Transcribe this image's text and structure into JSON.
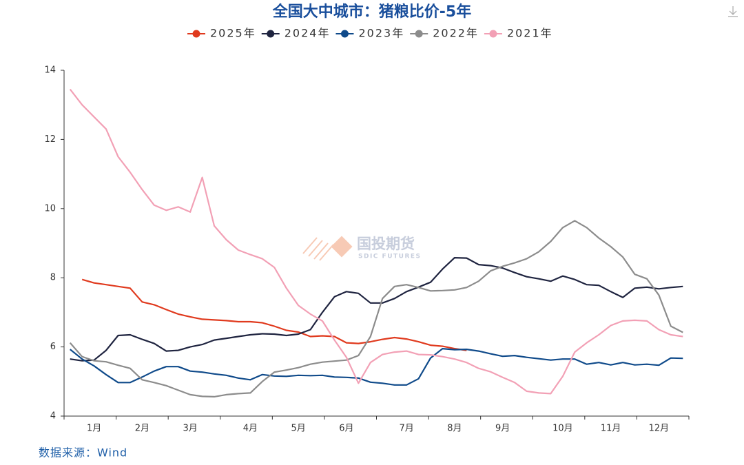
{
  "chart_data": {
    "type": "line",
    "title": "全国大中城市：猪粮比价-5年",
    "source": "数据来源：Wind",
    "watermark": {
      "text": "国投期货",
      "subtext": "SDIC FUTURES"
    },
    "categories": [
      null,
      null,
      "1月",
      null,
      null,
      null,
      "2月",
      null,
      null,
      null,
      "3月",
      null,
      null,
      null,
      null,
      "4月",
      null,
      null,
      null,
      "5月",
      null,
      null,
      null,
      "6月",
      null,
      null,
      null,
      null,
      "7月",
      null,
      null,
      null,
      "8月",
      null,
      null,
      null,
      "9月",
      null,
      null,
      null,
      null,
      "10月",
      null,
      null,
      null,
      "11月",
      null,
      null,
      null,
      "12月",
      null,
      null
    ],
    "series": [
      {
        "name": "2025年",
        "color": "#e03a1e",
        "values": [
          null,
          7.95,
          7.85,
          7.8,
          7.75,
          7.7,
          7.3,
          7.22,
          7.08,
          6.95,
          6.87,
          6.8,
          6.78,
          6.76,
          6.73,
          6.73,
          6.7,
          6.6,
          6.48,
          6.43,
          6.3,
          6.32,
          6.3,
          6.12,
          6.1,
          6.15,
          6.22,
          6.27,
          6.23,
          6.15,
          6.05,
          6.02,
          5.95,
          5.9,
          null,
          null,
          null,
          null,
          null,
          null,
          null,
          null,
          null,
          null,
          null,
          null,
          null,
          null,
          null,
          null,
          null,
          null
        ]
      },
      {
        "name": "2024年",
        "color": "#1f2440",
        "values": [
          5.65,
          5.6,
          5.62,
          5.9,
          6.33,
          6.35,
          6.22,
          6.1,
          5.88,
          5.9,
          6.0,
          6.07,
          6.2,
          6.25,
          6.3,
          6.35,
          6.38,
          6.37,
          6.33,
          6.37,
          6.5,
          7.0,
          7.45,
          7.6,
          7.55,
          7.27,
          7.27,
          7.4,
          7.6,
          7.73,
          7.87,
          8.25,
          8.58,
          8.57,
          8.38,
          8.35,
          8.28,
          8.15,
          8.03,
          7.97,
          7.9,
          8.05,
          7.95,
          7.8,
          7.78,
          7.6,
          7.43,
          7.7,
          7.73,
          7.68,
          7.72,
          7.75
        ]
      },
      {
        "name": "2023年",
        "color": "#0f4a8a",
        "values": [
          5.93,
          5.65,
          5.45,
          5.2,
          4.97,
          4.97,
          5.13,
          5.3,
          5.43,
          5.43,
          5.3,
          5.27,
          5.22,
          5.18,
          5.1,
          5.05,
          5.2,
          5.16,
          5.15,
          5.18,
          5.17,
          5.18,
          5.13,
          5.12,
          5.1,
          4.98,
          4.95,
          4.9,
          4.9,
          5.08,
          5.68,
          5.95,
          5.92,
          5.93,
          5.88,
          5.8,
          5.73,
          5.75,
          5.7,
          5.66,
          5.62,
          5.65,
          5.65,
          5.5,
          5.55,
          5.48,
          5.55,
          5.48,
          5.5,
          5.47,
          5.68,
          5.67
        ]
      },
      {
        "name": "2022年",
        "color": "#8c8c8c",
        "values": [
          6.12,
          5.72,
          5.6,
          5.57,
          5.47,
          5.38,
          5.05,
          4.97,
          4.88,
          4.75,
          4.62,
          4.57,
          4.56,
          4.62,
          4.65,
          4.67,
          5.0,
          5.27,
          5.33,
          5.4,
          5.5,
          5.56,
          5.59,
          5.62,
          5.75,
          6.3,
          7.4,
          7.75,
          7.8,
          7.72,
          7.62,
          7.63,
          7.65,
          7.72,
          7.9,
          8.2,
          8.33,
          8.43,
          8.55,
          8.75,
          9.05,
          9.45,
          9.65,
          9.45,
          9.15,
          8.9,
          8.6,
          8.1,
          7.97,
          7.5,
          6.6,
          6.42
        ]
      },
      {
        "name": "2021年",
        "color": "#f2a0b5",
        "values": [
          13.45,
          13.0,
          12.65,
          12.3,
          11.5,
          11.05,
          10.55,
          10.1,
          9.95,
          10.05,
          9.9,
          10.9,
          9.5,
          9.1,
          8.8,
          8.67,
          8.55,
          8.3,
          7.7,
          7.2,
          6.95,
          6.75,
          6.2,
          5.7,
          4.95,
          5.55,
          5.78,
          5.85,
          5.88,
          5.78,
          5.77,
          5.72,
          5.65,
          5.55,
          5.38,
          5.28,
          5.12,
          4.97,
          4.72,
          4.67,
          4.65,
          5.15,
          5.85,
          6.12,
          6.35,
          6.62,
          6.75,
          6.77,
          6.75,
          6.5,
          6.35,
          6.3
        ]
      }
    ],
    "ylim": [
      4,
      14
    ],
    "yticks": [
      4,
      6,
      8,
      10,
      12,
      14
    ]
  }
}
